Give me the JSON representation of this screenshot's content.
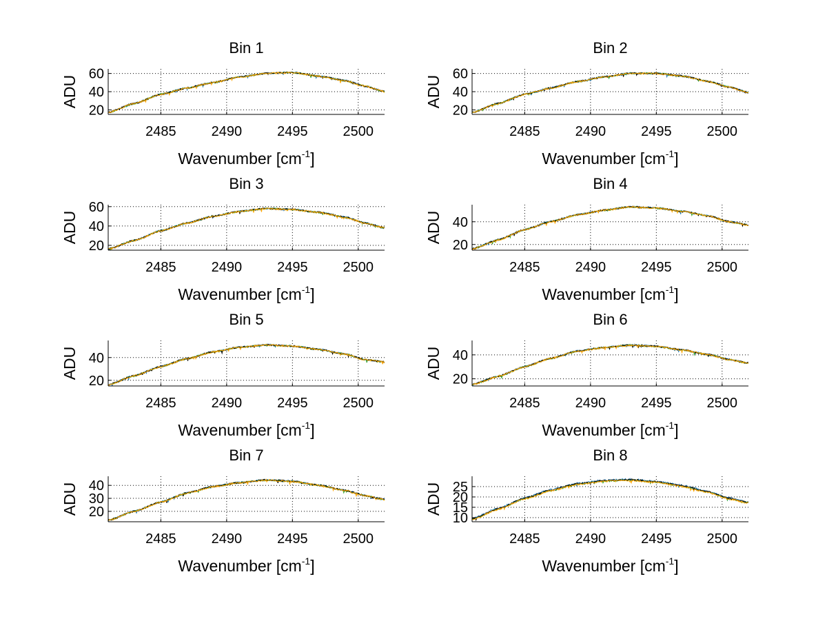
{
  "figure": {
    "background": "#ffffff",
    "series_colors": [
      "#1f77b4",
      "#2ca02c",
      "#000000",
      "#ffa500"
    ]
  },
  "chart_data": [
    {
      "type": "line",
      "title": "Bin 1",
      "xlabel": "Wavenumber [cm",
      "xlabel_sup": "-1",
      "xlabel_end": "]",
      "ylabel": "ADU",
      "xlim": [
        2481,
        2502
      ],
      "ylim": [
        15,
        65
      ],
      "xticks": [
        2485,
        2490,
        2495,
        2500
      ],
      "yticks": [
        20,
        40,
        60
      ],
      "grid": true,
      "series_count": 4,
      "profile": [
        [
          2481,
          17
        ],
        [
          2483,
          27
        ],
        [
          2485,
          37
        ],
        [
          2487,
          44
        ],
        [
          2489,
          50
        ],
        [
          2491,
          56
        ],
        [
          2493,
          60
        ],
        [
          2495,
          61
        ],
        [
          2497,
          57
        ],
        [
          2499,
          52
        ],
        [
          2500.5,
          46
        ],
        [
          2502,
          40
        ]
      ]
    },
    {
      "type": "line",
      "title": "Bin 2",
      "xlabel": "Wavenumber [cm",
      "xlabel_sup": "-1",
      "xlabel_end": "]",
      "ylabel": "ADU",
      "xlim": [
        2481,
        2502
      ],
      "ylim": [
        15,
        65
      ],
      "xticks": [
        2485,
        2490,
        2495,
        2500
      ],
      "yticks": [
        20,
        40,
        60
      ],
      "grid": true,
      "series_count": 4,
      "profile": [
        [
          2481,
          17
        ],
        [
          2483,
          27
        ],
        [
          2485,
          37
        ],
        [
          2487,
          44
        ],
        [
          2489,
          51
        ],
        [
          2491,
          56
        ],
        [
          2493,
          60
        ],
        [
          2495,
          60
        ],
        [
          2497,
          57
        ],
        [
          2499,
          51
        ],
        [
          2500.5,
          45
        ],
        [
          2502,
          39
        ]
      ]
    },
    {
      "type": "line",
      "title": "Bin 3",
      "xlabel": "Wavenumber [cm",
      "xlabel_sup": "-1",
      "xlabel_end": "]",
      "ylabel": "ADU",
      "xlim": [
        2481,
        2502
      ],
      "ylim": [
        15,
        62
      ],
      "xticks": [
        2485,
        2490,
        2495,
        2500
      ],
      "yticks": [
        20,
        40,
        60
      ],
      "grid": true,
      "series_count": 4,
      "profile": [
        [
          2481,
          16
        ],
        [
          2483,
          25
        ],
        [
          2485,
          35
        ],
        [
          2487,
          43
        ],
        [
          2489,
          50
        ],
        [
          2491,
          55
        ],
        [
          2493,
          58
        ],
        [
          2495,
          57
        ],
        [
          2497,
          54
        ],
        [
          2499,
          49
        ],
        [
          2500.5,
          43
        ],
        [
          2502,
          38
        ]
      ]
    },
    {
      "type": "line",
      "title": "Bin 4",
      "xlabel": "Wavenumber [cm",
      "xlabel_sup": "-1",
      "xlabel_end": "]",
      "ylabel": "ADU",
      "xlim": [
        2481,
        2502
      ],
      "ylim": [
        15,
        55
      ],
      "xticks": [
        2485,
        2490,
        2495,
        2500
      ],
      "yticks": [
        20,
        40
      ],
      "grid": true,
      "series_count": 4,
      "profile": [
        [
          2481,
          16
        ],
        [
          2483,
          24
        ],
        [
          2485,
          33
        ],
        [
          2487,
          40
        ],
        [
          2489,
          46
        ],
        [
          2491,
          50
        ],
        [
          2493,
          53
        ],
        [
          2495,
          52
        ],
        [
          2497,
          49
        ],
        [
          2499,
          45
        ],
        [
          2500.5,
          40
        ],
        [
          2502,
          37
        ]
      ]
    },
    {
      "type": "line",
      "title": "Bin 5",
      "xlabel": "Wavenumber [cm",
      "xlabel_sup": "-1",
      "xlabel_end": "]",
      "ylabel": "ADU",
      "xlim": [
        2481,
        2502
      ],
      "ylim": [
        15,
        55
      ],
      "xticks": [
        2485,
        2490,
        2495,
        2500
      ],
      "yticks": [
        20,
        40
      ],
      "grid": true,
      "series_count": 4,
      "profile": [
        [
          2481,
          16
        ],
        [
          2483,
          24
        ],
        [
          2485,
          32
        ],
        [
          2487,
          39
        ],
        [
          2489,
          45
        ],
        [
          2491,
          49
        ],
        [
          2493,
          51
        ],
        [
          2495,
          50
        ],
        [
          2497,
          47
        ],
        [
          2499,
          43
        ],
        [
          2500.5,
          38
        ],
        [
          2502,
          36
        ]
      ]
    },
    {
      "type": "line",
      "title": "Bin 6",
      "xlabel": "Wavenumber [cm",
      "xlabel_sup": "-1",
      "xlabel_end": "]",
      "ylabel": "ADU",
      "xlim": [
        2481,
        2502
      ],
      "ylim": [
        14,
        52
      ],
      "xticks": [
        2485,
        2490,
        2495,
        2500
      ],
      "yticks": [
        20,
        40
      ],
      "grid": true,
      "series_count": 4,
      "profile": [
        [
          2481,
          15
        ],
        [
          2483,
          22
        ],
        [
          2485,
          30
        ],
        [
          2487,
          37
        ],
        [
          2489,
          43
        ],
        [
          2491,
          46
        ],
        [
          2493,
          48
        ],
        [
          2495,
          47
        ],
        [
          2497,
          44
        ],
        [
          2499,
          40
        ],
        [
          2500.5,
          36
        ],
        [
          2502,
          33
        ]
      ]
    },
    {
      "type": "line",
      "title": "Bin 7",
      "xlabel": "Wavenumber [cm",
      "xlabel_sup": "-1",
      "xlabel_end": "]",
      "ylabel": "ADU",
      "xlim": [
        2481,
        2502
      ],
      "ylim": [
        12,
        47
      ],
      "xticks": [
        2485,
        2490,
        2495,
        2500
      ],
      "yticks": [
        20,
        30,
        40
      ],
      "grid": true,
      "series_count": 4,
      "profile": [
        [
          2481,
          13
        ],
        [
          2483,
          20
        ],
        [
          2485,
          27
        ],
        [
          2487,
          34
        ],
        [
          2489,
          39
        ],
        [
          2491,
          42
        ],
        [
          2493,
          44
        ],
        [
          2495,
          43
        ],
        [
          2497,
          40
        ],
        [
          2499,
          36
        ],
        [
          2500.5,
          32
        ],
        [
          2502,
          29
        ]
      ]
    },
    {
      "type": "line",
      "title": "Bin 8",
      "xlabel": "Wavenumber [cm",
      "xlabel_sup": "-1",
      "xlabel_end": "]",
      "ylabel": "ADU",
      "xlim": [
        2481,
        2502
      ],
      "ylim": [
        8,
        30
      ],
      "xticks": [
        2485,
        2490,
        2495,
        2500
      ],
      "yticks": [
        10,
        15,
        20,
        25
      ],
      "grid": true,
      "series_count": 4,
      "profile": [
        [
          2481,
          9
        ],
        [
          2483,
          14
        ],
        [
          2485,
          19
        ],
        [
          2487,
          23
        ],
        [
          2489,
          26
        ],
        [
          2491,
          27.5
        ],
        [
          2493,
          28
        ],
        [
          2495,
          27
        ],
        [
          2497,
          25
        ],
        [
          2499,
          22
        ],
        [
          2500.5,
          19
        ],
        [
          2502,
          17
        ]
      ]
    }
  ]
}
